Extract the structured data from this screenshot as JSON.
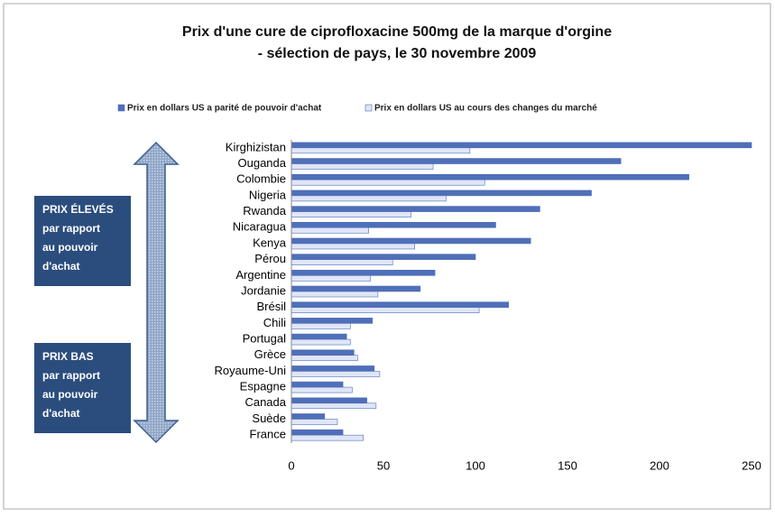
{
  "chart_data": {
    "type": "hbar",
    "title": [
      "Prix d'une cure de ciprofloxacine 500mg de la marque d'orgine",
      "- sélection de pays, le 30 novembre 2009"
    ],
    "categories": [
      "Kirghizistan",
      "Ouganda",
      "Colombie",
      "Nigeria",
      "Rwanda",
      "Nicaragua",
      "Kenya",
      "Pérou",
      "Argentine",
      "Jordanie",
      "Brésil",
      "Chili",
      "Portugal",
      "Grèce",
      "Royaume-Uni",
      "Espagne",
      "Canada",
      "Suède",
      "France"
    ],
    "series": [
      {
        "name": "Prix en dollars US a parité de pouvoir d'achat",
        "color": "#4f6fb8",
        "values": [
          250,
          179,
          216,
          163,
          135,
          111,
          130,
          100,
          78,
          70,
          118,
          44,
          30,
          34,
          45,
          28,
          41,
          18,
          28
        ]
      },
      {
        "name": "Prix en dollars US au cours des changes du marché",
        "color": "#dfe6f7",
        "values": [
          97,
          77,
          105,
          84,
          65,
          42,
          67,
          55,
          43,
          47,
          102,
          32,
          32,
          36,
          48,
          33,
          46,
          25,
          39
        ]
      }
    ],
    "xlim": [
      0,
      250
    ],
    "xticks": [
      0,
      50,
      100,
      150,
      200,
      250
    ],
    "grid": false,
    "legend": "top",
    "annotations": [
      [
        "PRIX ÉLEVÉS",
        "par rapport",
        "au pouvoir",
        "d'achat"
      ],
      [
        "PRIX BAS",
        "par rapport",
        "au pouvoir",
        "d'achat"
      ]
    ]
  }
}
